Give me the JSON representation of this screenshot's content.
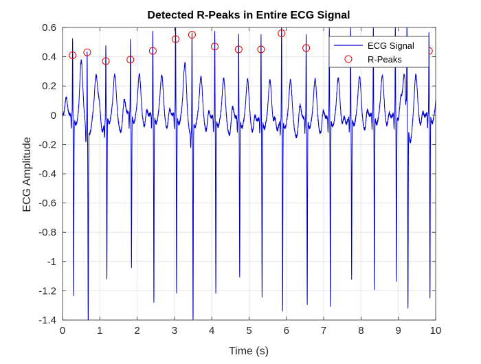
{
  "chart_data": {
    "type": "line",
    "title": "Detected R-Peaks in Entire ECG Signal",
    "xlabel": "Time (s)",
    "ylabel": "ECG Amplitude",
    "xlim": [
      0,
      10
    ],
    "ylim": [
      -1.4,
      0.6
    ],
    "xticks": [
      0,
      1,
      2,
      3,
      4,
      5,
      6,
      7,
      8,
      9,
      10
    ],
    "yticks": [
      -1.4,
      -1.2,
      -1,
      -0.8,
      -0.6,
      -0.4,
      -0.2,
      0,
      0.2,
      0.4,
      0.6
    ],
    "xtick_labels": [
      "0",
      "1",
      "2",
      "3",
      "4",
      "5",
      "6",
      "7",
      "8",
      "9",
      "10"
    ],
    "ytick_labels": [
      "-1.4",
      "-1.2",
      "-1",
      "-0.8",
      "-0.6",
      "-0.4",
      "-0.2",
      "0",
      "0.2",
      "0.4",
      "0.6"
    ],
    "grid": true,
    "legend_position": "top-right",
    "colors": {
      "signal": "#0000cc",
      "peaks": "#e00000",
      "grid": "#e3e3e3",
      "axes": "#262626"
    },
    "beats": [
      {
        "t": 0.27,
        "peak": 0.41,
        "trough": -1.18
      },
      {
        "t": 0.66,
        "peak": 0.43,
        "trough": -1.3
      },
      {
        "t": 1.16,
        "peak": 0.37,
        "trough": -1.07
      },
      {
        "t": 1.82,
        "peak": 0.38,
        "trough": -1.0
      },
      {
        "t": 2.42,
        "peak": 0.44,
        "trough": -1.24
      },
      {
        "t": 3.03,
        "peak": 0.52,
        "trough": -1.17
      },
      {
        "t": 3.47,
        "peak": 0.55,
        "trough": -1.32
      },
      {
        "t": 4.08,
        "peak": 0.47,
        "trough": -1.14
      },
      {
        "t": 4.72,
        "peak": 0.45,
        "trough": -1.03
      },
      {
        "t": 5.32,
        "peak": 0.45,
        "trough": -1.16
      },
      {
        "t": 5.87,
        "peak": 0.56,
        "trough": -1.26
      },
      {
        "t": 6.53,
        "peak": 0.46,
        "trough": -1.21
      },
      {
        "t": 7.15,
        "peak": 0.5,
        "trough": -1.23
      },
      {
        "t": 7.72,
        "peak": 0.49,
        "trough": -1.05
      },
      {
        "t": 8.33,
        "peak": 0.5,
        "trough": -1.13
      },
      {
        "t": 8.92,
        "peak": 0.52,
        "trough": -1.08
      },
      {
        "t": 9.23,
        "peak": 0.51,
        "trough": -1.22
      },
      {
        "t": 9.82,
        "peak": 0.44,
        "trough": -1.2
      }
    ],
    "series": [
      {
        "name": "ECG Signal",
        "style": "line"
      },
      {
        "name": "R-Peaks",
        "style": "marker-circle",
        "x": [
          0.27,
          0.66,
          1.16,
          1.82,
          2.42,
          3.03,
          3.47,
          4.08,
          4.72,
          5.32,
          5.87,
          6.53,
          9.82
        ],
        "y": [
          0.41,
          0.43,
          0.37,
          0.38,
          0.44,
          0.52,
          0.55,
          0.47,
          0.45,
          0.45,
          0.56,
          0.46,
          0.44
        ]
      }
    ]
  }
}
